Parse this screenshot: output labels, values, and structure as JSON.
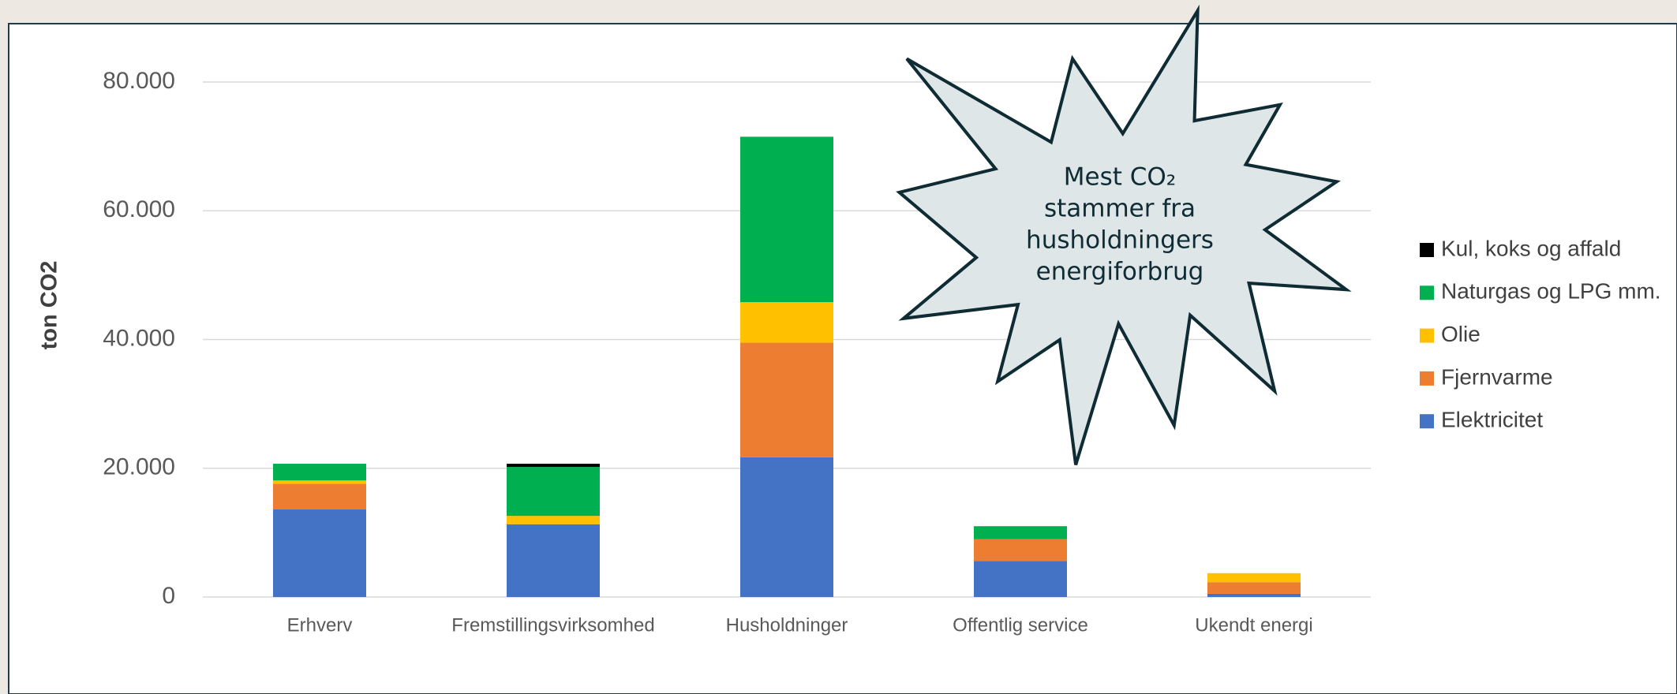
{
  "chart_data": {
    "type": "bar",
    "stacked": true,
    "y_label": "ton CO2",
    "categories": [
      "Erhverv",
      "Fremstillingsvirksomhed",
      "Husholdninger",
      "Offentlig service",
      "Ukendt energi"
    ],
    "series": [
      {
        "name": "Elektricitet",
        "color": "#4472c4",
        "values": [
          13600,
          11300,
          21700,
          5600,
          500
        ]
      },
      {
        "name": "Fjernvarme",
        "color": "#ed7d31",
        "values": [
          4000,
          0,
          17800,
          3400,
          1800
        ]
      },
      {
        "name": "Olie",
        "color": "#ffc000",
        "values": [
          500,
          1300,
          6300,
          0,
          1400
        ]
      },
      {
        "name": "Naturgas og LPG mm.",
        "color": "#00b050",
        "values": [
          2600,
          7600,
          25700,
          2000,
          0
        ]
      },
      {
        "name": "Kul, koks og affald",
        "color": "#000000",
        "values": [
          0,
          500,
          0,
          0,
          0
        ]
      }
    ],
    "ylim": [
      0,
      80000
    ],
    "yticks": [
      0,
      {
        "value": 20000,
        "label": "20.000"
      },
      {
        "value": 40000,
        "label": "40.000"
      },
      {
        "value": 60000,
        "label": "60.000"
      },
      {
        "value": 80000,
        "label": "80.000"
      }
    ],
    "grid": true,
    "legend": "right",
    "annotation": [
      "Mest CO₂",
      "stammer fra",
      "husholdningers",
      "energiforbrug"
    ]
  }
}
